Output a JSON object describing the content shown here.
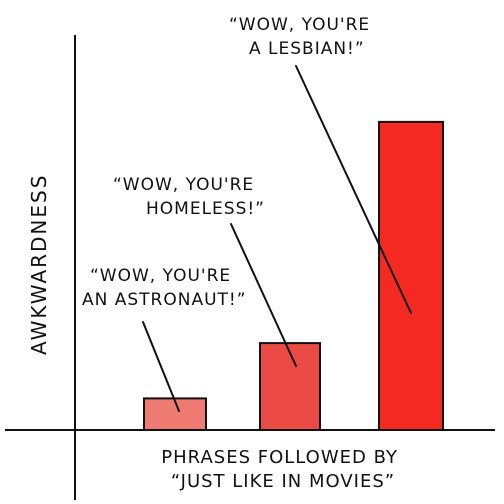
{
  "chart_data": {
    "type": "bar",
    "xlabel": [
      "PHRASES FOLLOWED BY",
      "“JUST LIKE IN MOVIES”"
    ],
    "ylabel": "AWKWARDNESS",
    "categories": [
      "“WOW, YOU'RE AN ASTRONAUT!”",
      "“WOW, YOU'RE HOMELESS!”",
      "“WOW, YOU'RE A LESBIAN!”"
    ],
    "values": [
      8,
      22,
      78
    ],
    "ylim": [
      0,
      100
    ],
    "grid": false,
    "bar_colors": [
      "#ef7b73",
      "#ec4a45",
      "#f42a22"
    ],
    "annotations": [
      [
        "“WOW, YOU'RE",
        "AN ASTRONAUT!”"
      ],
      [
        "“WOW, YOU'RE",
        "HOMELESS!”"
      ],
      [
        "“WOW, YOU'RE",
        "A LESBIAN!”"
      ]
    ]
  }
}
